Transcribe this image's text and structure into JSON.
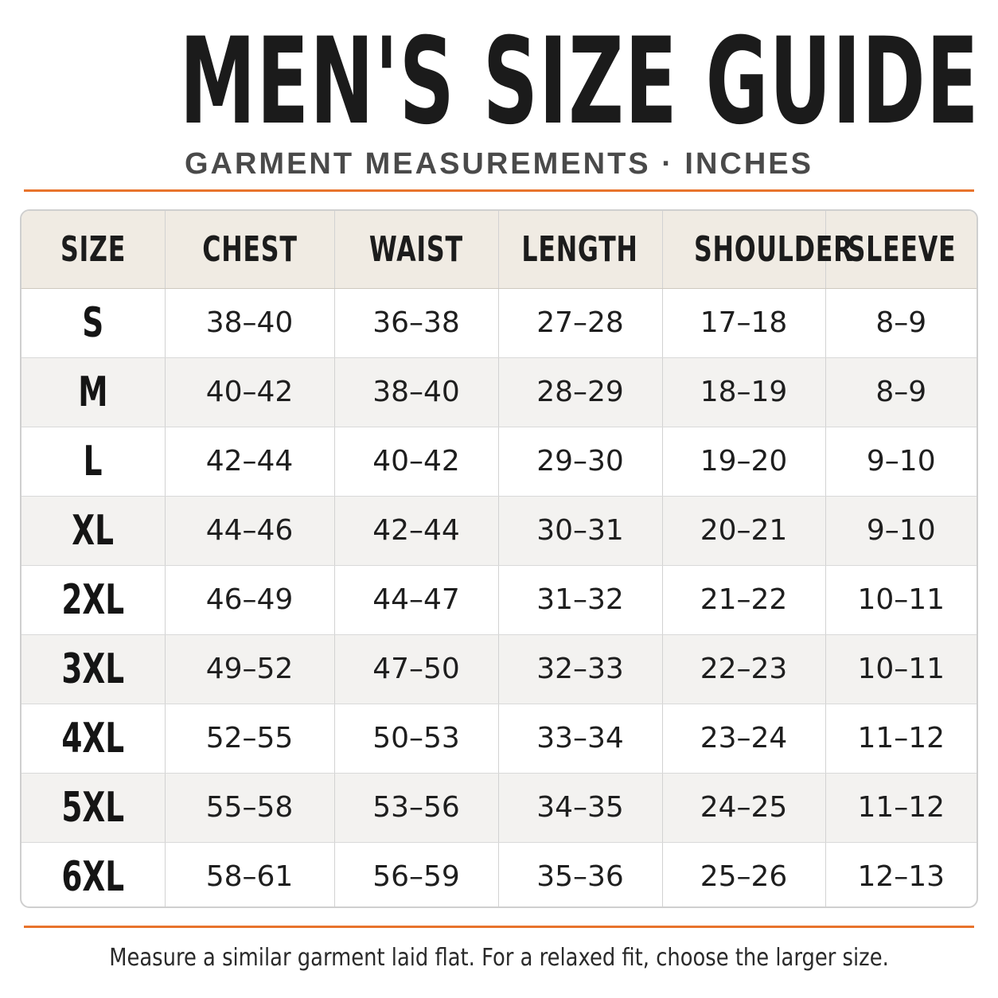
{
  "title": "MEN'S SIZE GUIDE",
  "subtitle": "GARMENT MEASUREMENTS · INCHES",
  "colors": {
    "accent_rule": "#e8732c",
    "header_bg": "#f0ebe3",
    "alt_row_bg": "#f3f2f0"
  },
  "table": {
    "headers": [
      "SIZE",
      "CHEST",
      "WAIST",
      "LENGTH",
      "SHOULDER",
      "SLEEVE"
    ],
    "rows": [
      [
        "S",
        "38–40",
        "36–38",
        "27–28",
        "17–18",
        "8–9"
      ],
      [
        "M",
        "40–42",
        "38–40",
        "28–29",
        "18–19",
        "8–9"
      ],
      [
        "L",
        "42–44",
        "40–42",
        "29–30",
        "19–20",
        "9–10"
      ],
      [
        "XL",
        "44–46",
        "42–44",
        "30–31",
        "20–21",
        "9–10"
      ],
      [
        "2XL",
        "46–49",
        "44–47",
        "31–32",
        "21–22",
        "10–11"
      ],
      [
        "3XL",
        "49–52",
        "47–50",
        "32–33",
        "22–23",
        "10–11"
      ],
      [
        "4XL",
        "52–55",
        "50–53",
        "33–34",
        "23–24",
        "11–12"
      ],
      [
        "5XL",
        "55–58",
        "53–56",
        "34–35",
        "24–25",
        "11–12"
      ],
      [
        "6XL",
        "58–61",
        "56–59",
        "35–36",
        "25–26",
        "12–13"
      ]
    ]
  },
  "footer_note": "Measure a similar garment laid flat. For a relaxed fit, choose the larger size."
}
